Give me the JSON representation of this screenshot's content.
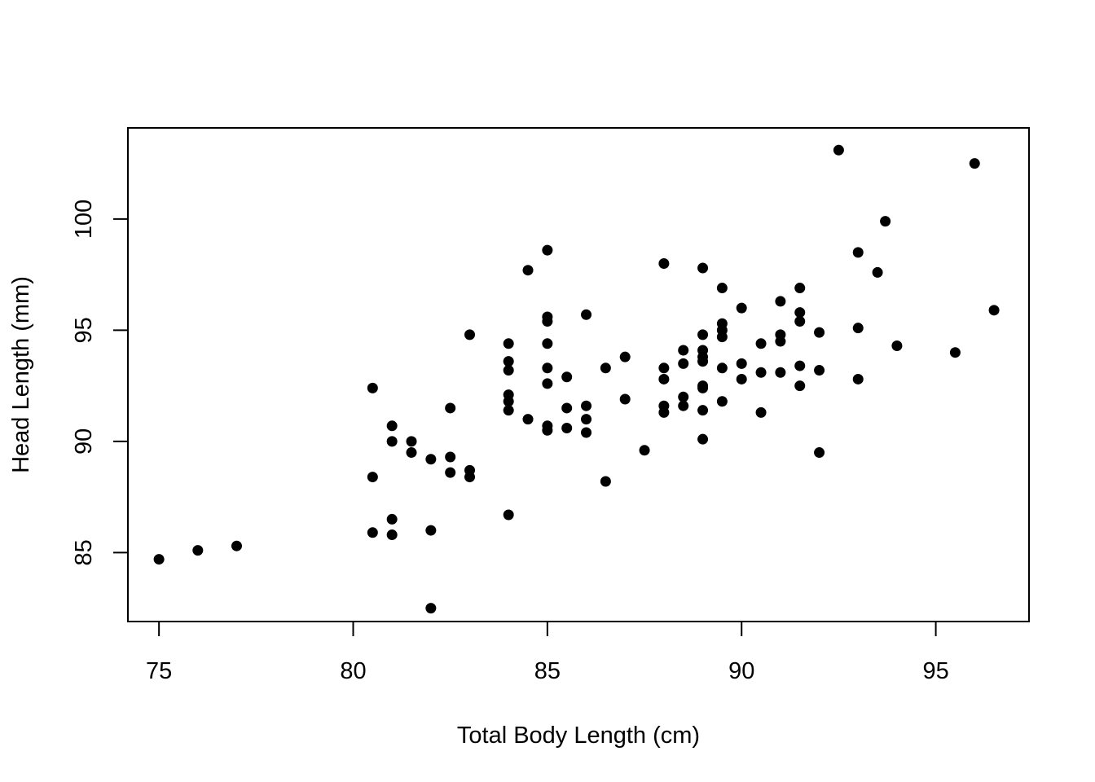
{
  "chart_data": {
    "type": "scatter",
    "title": "",
    "xlabel": "Total Body Length (cm)",
    "ylabel": "Head Length (mm)",
    "xlim": [
      74.2,
      97.4
    ],
    "ylim": [
      81.9,
      104.1
    ],
    "xticks": [
      75,
      80,
      85,
      90,
      95
    ],
    "yticks": [
      85,
      90,
      95,
      100
    ],
    "xtick_labels": [
      "75",
      "80",
      "85",
      "90",
      "95"
    ],
    "ytick_labels": [
      "85",
      "90",
      "95",
      "100"
    ],
    "grid": false,
    "legend": "none",
    "point_color": "#000000",
    "points": [
      [
        75,
        84.7
      ],
      [
        76,
        85.1
      ],
      [
        77,
        85.3
      ],
      [
        80.5,
        92.4
      ],
      [
        80.5,
        88.4
      ],
      [
        80.5,
        85.9
      ],
      [
        81,
        90.7
      ],
      [
        81,
        90.0
      ],
      [
        81,
        86.5
      ],
      [
        81,
        85.8
      ],
      [
        81.5,
        90.0
      ],
      [
        81.5,
        89.5
      ],
      [
        82,
        89.2
      ],
      [
        82,
        86.0
      ],
      [
        82,
        82.5
      ],
      [
        82.5,
        91.5
      ],
      [
        82.5,
        89.3
      ],
      [
        82.5,
        88.6
      ],
      [
        83,
        94.8
      ],
      [
        83,
        88.7
      ],
      [
        83,
        88.4
      ],
      [
        84,
        94.4
      ],
      [
        84,
        93.6
      ],
      [
        84,
        93.2
      ],
      [
        84,
        92.1
      ],
      [
        84,
        91.8
      ],
      [
        84,
        91.4
      ],
      [
        84,
        86.7
      ],
      [
        84.5,
        97.7
      ],
      [
        84.5,
        91.0
      ],
      [
        85,
        98.6
      ],
      [
        85,
        95.6
      ],
      [
        85,
        95.4
      ],
      [
        85,
        94.4
      ],
      [
        85,
        93.3
      ],
      [
        85,
        92.6
      ],
      [
        85,
        90.7
      ],
      [
        85,
        90.5
      ],
      [
        85.5,
        92.9
      ],
      [
        85.5,
        91.5
      ],
      [
        85.5,
        90.6
      ],
      [
        86,
        95.7
      ],
      [
        86,
        91.6
      ],
      [
        86,
        91.0
      ],
      [
        86,
        90.4
      ],
      [
        86.5,
        93.3
      ],
      [
        86.5,
        88.2
      ],
      [
        87,
        93.8
      ],
      [
        87,
        91.9
      ],
      [
        87.5,
        89.6
      ],
      [
        88,
        98.0
      ],
      [
        88,
        93.3
      ],
      [
        88,
        92.8
      ],
      [
        88,
        91.6
      ],
      [
        88,
        91.3
      ],
      [
        88.5,
        94.1
      ],
      [
        88.5,
        93.5
      ],
      [
        88.5,
        92.0
      ],
      [
        88.5,
        91.6
      ],
      [
        89,
        97.8
      ],
      [
        89,
        94.8
      ],
      [
        89,
        94.1
      ],
      [
        89,
        93.8
      ],
      [
        89,
        93.6
      ],
      [
        89,
        92.5
      ],
      [
        89,
        92.4
      ],
      [
        89,
        91.4
      ],
      [
        89,
        90.1
      ],
      [
        89.5,
        96.9
      ],
      [
        89.5,
        95.3
      ],
      [
        89.5,
        95.0
      ],
      [
        89.5,
        94.7
      ],
      [
        89.5,
        93.3
      ],
      [
        89.5,
        91.8
      ],
      [
        90,
        96.0
      ],
      [
        90,
        93.5
      ],
      [
        90,
        92.8
      ],
      [
        90.5,
        94.4
      ],
      [
        90.5,
        93.1
      ],
      [
        90.5,
        91.3
      ],
      [
        91,
        96.3
      ],
      [
        91,
        94.8
      ],
      [
        91,
        94.5
      ],
      [
        91,
        93.1
      ],
      [
        91.5,
        96.9
      ],
      [
        91.5,
        95.8
      ],
      [
        91.5,
        95.4
      ],
      [
        91.5,
        93.4
      ],
      [
        91.5,
        92.5
      ],
      [
        92,
        94.9
      ],
      [
        92,
        93.2
      ],
      [
        92,
        89.5
      ],
      [
        92.5,
        103.1
      ],
      [
        93,
        98.5
      ],
      [
        93,
        95.1
      ],
      [
        93,
        92.8
      ],
      [
        93.5,
        97.6
      ],
      [
        93.7,
        99.9
      ],
      [
        94,
        94.3
      ],
      [
        95.5,
        94.0
      ],
      [
        96,
        102.5
      ],
      [
        96.5,
        95.9
      ]
    ]
  }
}
